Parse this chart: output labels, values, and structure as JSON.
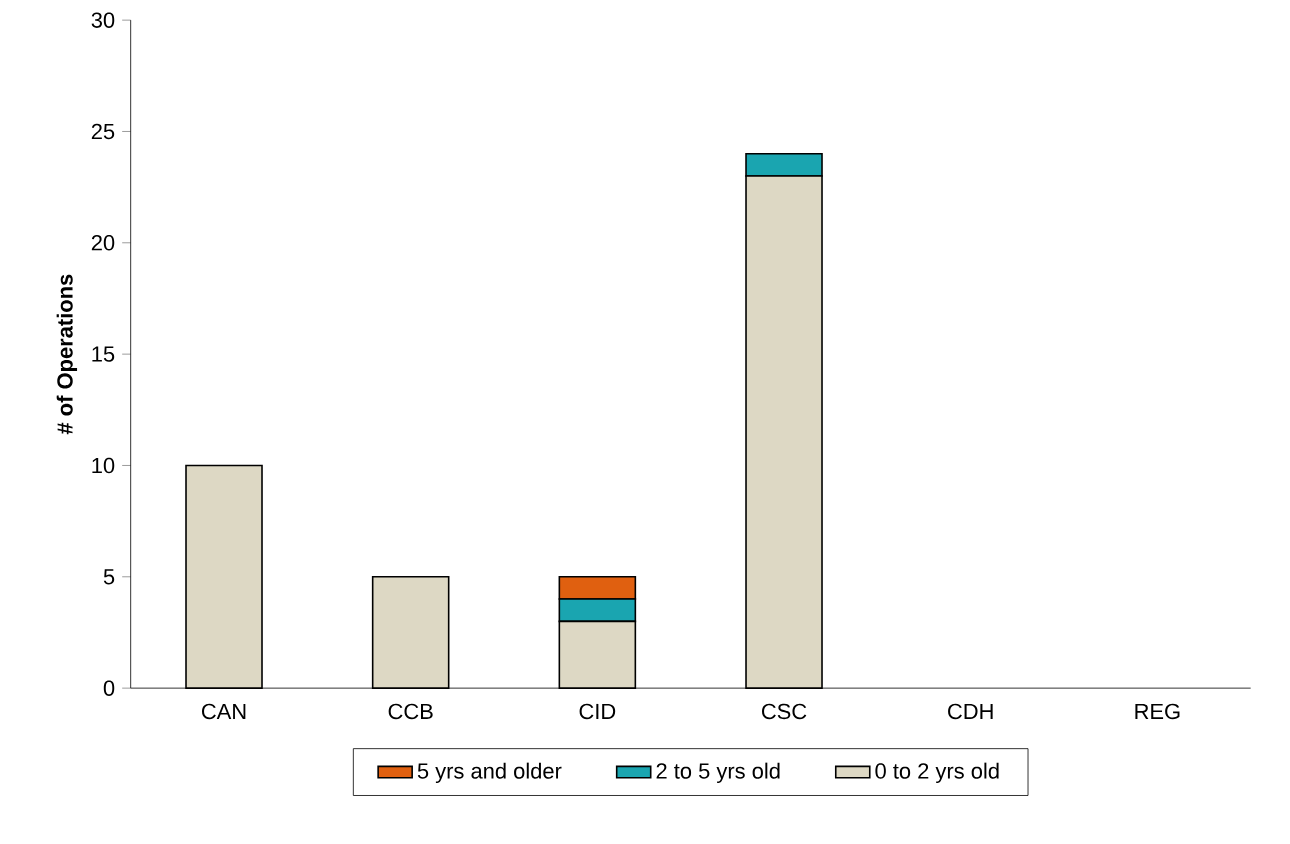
{
  "chart_data": {
    "type": "bar",
    "stacked": true,
    "ylabel": "# of Operations",
    "categories": [
      "CAN",
      "CCB",
      "CID",
      "CSC",
      "CDH",
      "REG"
    ],
    "series": [
      {
        "name": "0 to 2 yrs old",
        "color": "#ddd8c4",
        "values": [
          10,
          5,
          3,
          23,
          0,
          0
        ]
      },
      {
        "name": "2 to 5 yrs old",
        "color": "#1aa5b0",
        "values": [
          0,
          0,
          1,
          1,
          0,
          0
        ]
      },
      {
        "name": "5 yrs and older",
        "color": "#e06010",
        "values": [
          0,
          0,
          1,
          0,
          0,
          0
        ]
      }
    ],
    "ylim": [
      0,
      30
    ],
    "yticks": [
      0,
      5,
      10,
      15,
      20,
      25,
      30
    ],
    "legend": "bottom",
    "grid": false
  }
}
